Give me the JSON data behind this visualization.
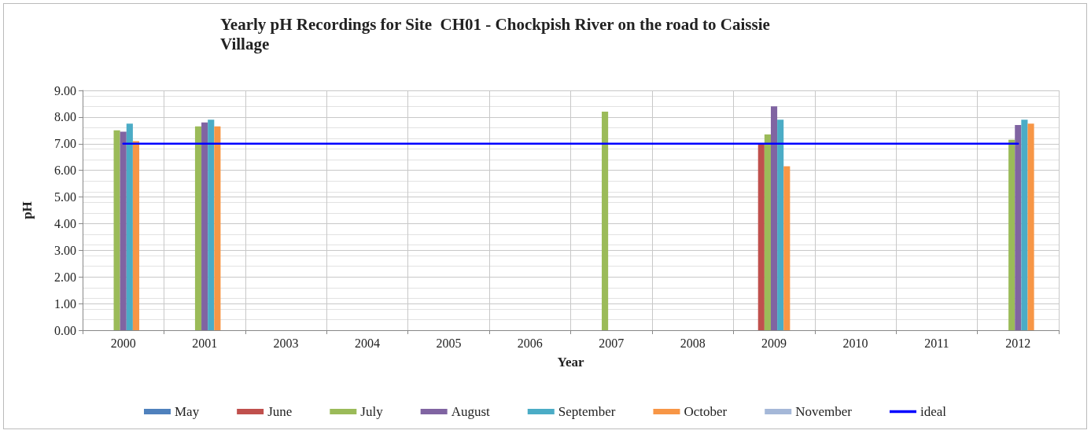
{
  "chart_data": {
    "type": "bar",
    "title": "Yearly pH Recordings for Site  CH01 - Chockpish River on the road to Caissie\nVillage",
    "xlabel": "Year",
    "ylabel": "pH",
    "categories": [
      "2000",
      "2001",
      "2003",
      "2004",
      "2005",
      "2006",
      "2007",
      "2008",
      "2009",
      "2010",
      "2011",
      "2012"
    ],
    "series": [
      {
        "name": "May",
        "color": "#4f81bd",
        "values": [
          null,
          null,
          null,
          null,
          null,
          null,
          null,
          null,
          null,
          null,
          null,
          null
        ]
      },
      {
        "name": "June",
        "color": "#c0504d",
        "values": [
          null,
          null,
          null,
          null,
          null,
          null,
          null,
          null,
          7.0,
          null,
          null,
          null
        ]
      },
      {
        "name": "July",
        "color": "#9bbb59",
        "values": [
          7.5,
          7.65,
          null,
          null,
          null,
          null,
          8.2,
          null,
          7.35,
          null,
          null,
          7.15
        ]
      },
      {
        "name": "August",
        "color": "#8064a2",
        "values": [
          7.45,
          7.8,
          null,
          null,
          null,
          null,
          null,
          null,
          8.4,
          null,
          null,
          7.7
        ]
      },
      {
        "name": "September",
        "color": "#4bacc6",
        "values": [
          7.75,
          7.9,
          null,
          null,
          null,
          null,
          null,
          null,
          7.9,
          null,
          null,
          7.9
        ]
      },
      {
        "name": "October",
        "color": "#f79646",
        "values": [
          7.1,
          7.65,
          null,
          null,
          null,
          null,
          null,
          null,
          6.15,
          null,
          null,
          7.75
        ]
      },
      {
        "name": "November",
        "color": "#a5b8d8",
        "values": [
          null,
          null,
          null,
          null,
          null,
          null,
          null,
          null,
          null,
          null,
          null,
          null
        ]
      },
      {
        "name": "ideal",
        "type": "line",
        "color": "#0000ff",
        "values": [
          7,
          7,
          7,
          7,
          7,
          7,
          7,
          7,
          7,
          7,
          7,
          7
        ]
      }
    ],
    "ylim": [
      0,
      9
    ],
    "yticks": [
      {
        "value": 0,
        "label": "0.00"
      },
      {
        "value": 1,
        "label": "1.00"
      },
      {
        "value": 2,
        "label": "2.00"
      },
      {
        "value": 3,
        "label": "3.00"
      },
      {
        "value": 4,
        "label": "4.00"
      },
      {
        "value": 5,
        "label": "5.00"
      },
      {
        "value": 6,
        "label": "6.00"
      },
      {
        "value": 7,
        "label": "7.00"
      },
      {
        "value": 8,
        "label": "8.00"
      },
      {
        "value": 9,
        "label": "9.00"
      }
    ],
    "grid": true,
    "legend": "bottom",
    "marker": "none",
    "line_style": "solid"
  }
}
